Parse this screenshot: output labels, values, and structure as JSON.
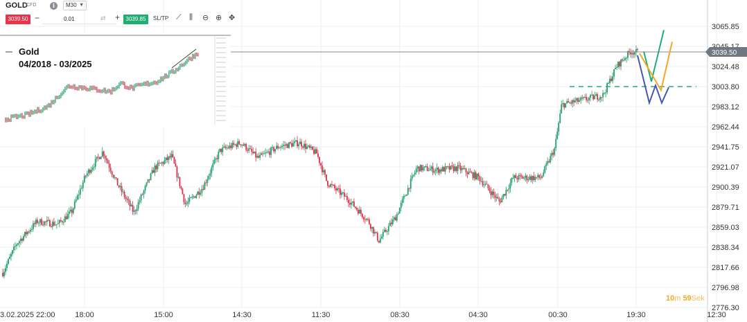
{
  "toolbar": {
    "symbol": "GOLD",
    "instrument_type": "CFD",
    "info_icon": "info-icon",
    "timeframe": "M30",
    "sell_price": "3039.50",
    "quantity": "0.01",
    "buy_price": "3039.85",
    "sltp_label": "SL/TP",
    "tools": [
      "chart-type-icon",
      "indicators-icon",
      "zoom-out-icon",
      "zoom-in-icon",
      "crosshair-icon"
    ]
  },
  "inset": {
    "title": "Gold",
    "date_range": "04/2018 - 03/2025"
  },
  "countdown": {
    "minutes": "10",
    "minutes_unit": "m",
    "seconds": "59",
    "seconds_unit": "Sek"
  },
  "chart_data": {
    "type": "candlestick",
    "y_ticks": [
      "3065.85",
      "3045.17",
      "3024.48",
      "3003.80",
      "2983.12",
      "2962.44",
      "2941.75",
      "2921.07",
      "2900.39",
      "2879.71",
      "2859.03",
      "2838.34",
      "2817.66",
      "2796.98",
      "2776.30"
    ],
    "x_ticks": [
      "3.02.2025 22:00",
      "18:00",
      "15:00",
      "14:30",
      "11:30",
      "08:30",
      "04:30",
      "00:30",
      "19:30",
      "12:30"
    ],
    "ylim": [
      2776.3,
      3065.85
    ],
    "current_price": "3039.50",
    "current_price_value": 3039.5,
    "support_level": 3003.8,
    "price_path": [
      [
        0,
        2812
      ],
      [
        0.02,
        2842
      ],
      [
        0.05,
        2865
      ],
      [
        0.08,
        2862
      ],
      [
        0.1,
        2875
      ],
      [
        0.12,
        2912
      ],
      [
        0.145,
        2937
      ],
      [
        0.165,
        2905
      ],
      [
        0.19,
        2874
      ],
      [
        0.22,
        2920
      ],
      [
        0.245,
        2932
      ],
      [
        0.265,
        2882
      ],
      [
        0.29,
        2900
      ],
      [
        0.315,
        2938
      ],
      [
        0.345,
        2946
      ],
      [
        0.37,
        2930
      ],
      [
        0.4,
        2942
      ],
      [
        0.43,
        2946
      ],
      [
        0.455,
        2935
      ],
      [
        0.47,
        2905
      ],
      [
        0.5,
        2888
      ],
      [
        0.53,
        2865
      ],
      [
        0.545,
        2845
      ],
      [
        0.57,
        2870
      ],
      [
        0.6,
        2920
      ],
      [
        0.63,
        2918
      ],
      [
        0.66,
        2920
      ],
      [
        0.69,
        2910
      ],
      [
        0.72,
        2885
      ],
      [
        0.74,
        2910
      ],
      [
        0.78,
        2910
      ],
      [
        0.8,
        2940
      ],
      [
        0.81,
        2985
      ],
      [
        0.84,
        2990
      ],
      [
        0.87,
        2995
      ],
      [
        0.89,
        3025
      ],
      [
        0.91,
        3040
      ],
      [
        0.92,
        3039
      ]
    ],
    "scenarios": [
      {
        "color": "#22ab77",
        "points": [
          [
            929,
            3040
          ],
          [
            940,
            3009
          ],
          [
            958,
            3062
          ]
        ]
      },
      {
        "color": "#f5a623",
        "points": [
          [
            923,
            3038
          ],
          [
            940,
            3017
          ],
          [
            954,
            3000
          ],
          [
            970,
            3050
          ]
        ]
      },
      {
        "color": "#4556b4",
        "points": [
          [
            920,
            3036
          ],
          [
            937,
            2987
          ],
          [
            946,
            3005
          ],
          [
            955,
            2987
          ],
          [
            965,
            3003
          ]
        ]
      }
    ],
    "inset_path": [
      [
        0,
        0.05
      ],
      [
        0.1,
        0.1
      ],
      [
        0.2,
        0.2
      ],
      [
        0.3,
        0.45
      ],
      [
        0.4,
        0.42
      ],
      [
        0.5,
        0.38
      ],
      [
        0.55,
        0.48
      ],
      [
        0.6,
        0.42
      ],
      [
        0.65,
        0.46
      ],
      [
        0.72,
        0.5
      ],
      [
        0.8,
        0.62
      ],
      [
        0.88,
        0.78
      ],
      [
        0.95,
        0.9
      ],
      [
        1.0,
        1.05
      ]
    ]
  }
}
